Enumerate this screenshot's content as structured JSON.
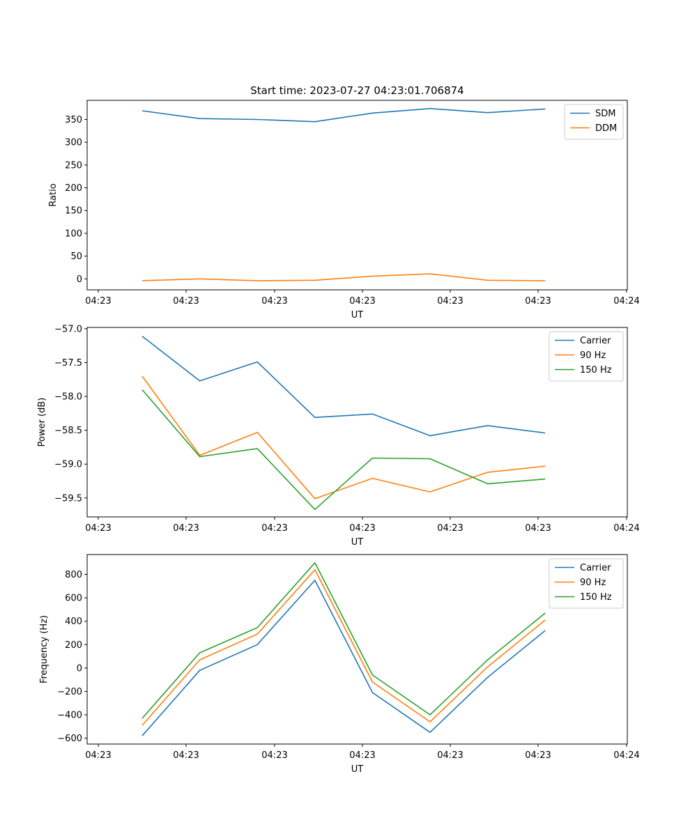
{
  "chart_data": [
    {
      "type": "line",
      "title": "Start time: 2023-07-27 04:23:01.706874",
      "xlabel": "UT",
      "ylabel": "Ratio",
      "x_ticks": [
        "04:23",
        "04:23",
        "04:23",
        "04:23",
        "04:23",
        "04:23",
        "04:24"
      ],
      "ylim": [
        -24,
        392
      ],
      "y_ticks": [
        0,
        50,
        100,
        150,
        200,
        250,
        300,
        350
      ],
      "legend": "top-right",
      "series": [
        {
          "name": "SDM",
          "color": "#1f77b4",
          "values": [
            369,
            352,
            350,
            345,
            364,
            374,
            365,
            373
          ]
        },
        {
          "name": "DDM",
          "color": "#ff7f0e",
          "values": [
            -4,
            0,
            -4,
            -3,
            6,
            11,
            -3,
            -4
          ]
        }
      ]
    },
    {
      "type": "line",
      "title": "",
      "xlabel": "UT",
      "ylabel": "Power (dB)",
      "x_ticks": [
        "04:23",
        "04:23",
        "04:23",
        "04:23",
        "04:23",
        "04:23",
        "04:24"
      ],
      "ylim": [
        -59.78,
        -56.98
      ],
      "y_ticks": [
        -57.0,
        -57.5,
        -58.0,
        -58.5,
        -59.0,
        -59.5
      ],
      "legend": "top-right",
      "series": [
        {
          "name": "Carrier",
          "color": "#1f77b4",
          "values": [
            -57.11,
            -57.77,
            -57.49,
            -58.31,
            -58.26,
            -58.58,
            -58.43,
            -58.54
          ]
        },
        {
          "name": "90 Hz",
          "color": "#ff7f0e",
          "values": [
            -57.7,
            -58.87,
            -58.53,
            -59.51,
            -59.21,
            -59.41,
            -59.12,
            -59.03
          ]
        },
        {
          "name": "150 Hz",
          "color": "#2ca02c",
          "values": [
            -57.9,
            -58.89,
            -58.77,
            -59.67,
            -58.91,
            -58.92,
            -59.29,
            -59.22
          ]
        }
      ]
    },
    {
      "type": "line",
      "title": "",
      "xlabel": "UT",
      "ylabel": "Frequency (Hz)",
      "x_ticks": [
        "04:23",
        "04:23",
        "04:23",
        "04:23",
        "04:23",
        "04:23",
        "04:24"
      ],
      "ylim": [
        -650,
        970
      ],
      "y_ticks": [
        800,
        600,
        400,
        200,
        0,
        -200,
        -400,
        -600
      ],
      "legend": "top-right",
      "series": [
        {
          "name": "Carrier",
          "color": "#1f77b4",
          "values": [
            -580,
            -20,
            200,
            750,
            -210,
            -550,
            -80,
            320
          ]
        },
        {
          "name": "90 Hz",
          "color": "#ff7f0e",
          "values": [
            -490,
            70,
            290,
            840,
            -120,
            -460,
            10,
            410
          ]
        },
        {
          "name": "150 Hz",
          "color": "#2ca02c",
          "values": [
            -430,
            130,
            345,
            900,
            -60,
            -400,
            70,
            470
          ]
        }
      ]
    }
  ]
}
